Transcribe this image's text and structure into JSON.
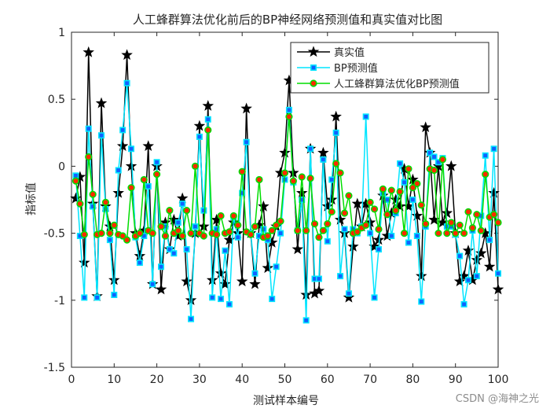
{
  "chart_data": {
    "type": "line",
    "title": "人工蜂群算法优化前后的BP神经网络预测值和真实值对比图",
    "xlabel": "测试样本编号",
    "ylabel": "指标值",
    "xlim": [
      0,
      100
    ],
    "ylim": [
      -1.5,
      1
    ],
    "xticks": [
      0,
      10,
      20,
      30,
      40,
      50,
      60,
      70,
      80,
      90,
      100
    ],
    "yticks": [
      -1.5,
      -1,
      -0.5,
      0,
      0.5,
      1
    ],
    "grid": false,
    "legend_position": "top-right",
    "x": [
      1,
      2,
      3,
      4,
      5,
      6,
      7,
      8,
      9,
      10,
      11,
      12,
      13,
      14,
      15,
      16,
      17,
      18,
      19,
      20,
      21,
      22,
      23,
      24,
      25,
      26,
      27,
      28,
      29,
      30,
      31,
      32,
      33,
      34,
      35,
      36,
      37,
      38,
      39,
      40,
      41,
      42,
      43,
      44,
      45,
      46,
      47,
      48,
      49,
      50,
      51,
      52,
      53,
      54,
      55,
      56,
      57,
      58,
      59,
      60,
      61,
      62,
      63,
      64,
      65,
      66,
      67,
      68,
      69,
      70,
      71,
      72,
      73,
      74,
      75,
      76,
      77,
      78,
      79,
      80,
      81,
      82,
      83,
      84,
      85,
      86,
      87,
      88,
      89,
      90,
      91,
      92,
      93,
      94,
      95,
      96,
      97,
      98,
      99,
      100
    ],
    "series": [
      {
        "name": "真实值",
        "color": "#000000",
        "marker": "star",
        "values": [
          -0.24,
          -0.08,
          -0.72,
          0.85,
          -0.28,
          -0.97,
          0.47,
          -0.3,
          -0.45,
          -0.85,
          -0.2,
          0.15,
          0.83,
          0.0,
          -0.5,
          -0.67,
          -0.48,
          0.15,
          -0.88,
          0.0,
          -0.92,
          -0.42,
          -0.62,
          -0.4,
          -0.52,
          -0.24,
          -0.86,
          -1.0,
          -0.5,
          0.3,
          -0.45,
          0.45,
          -0.85,
          -0.4,
          -0.8,
          -0.88,
          -0.55,
          -0.42,
          -0.5,
          -0.86,
          0.43,
          -0.5,
          -0.88,
          -0.44,
          -0.3,
          -0.76,
          -0.57,
          -0.45,
          -0.05,
          0.1,
          0.64,
          -0.05,
          -0.62,
          -0.2,
          -0.96,
          0.13,
          -0.95,
          -0.93,
          0.1,
          -0.3,
          -0.25,
          0.37,
          -0.4,
          -0.5,
          -0.98,
          -0.6,
          -0.28,
          -0.45,
          -0.28,
          -0.42,
          -0.6,
          -0.55,
          -0.22,
          -0.52,
          -0.35,
          -0.25,
          -0.3,
          -0.02,
          -0.3,
          -0.1,
          -0.37,
          -0.82,
          0.29,
          0.1,
          -0.4,
          0.0,
          -0.42,
          -0.35,
          0.0,
          -0.5,
          -0.86,
          -0.82,
          -0.63,
          -0.85,
          -0.7,
          -0.65,
          -0.5,
          -0.75,
          -0.2,
          -0.92
        ]
      },
      {
        "name": "BP预测值",
        "color": "#00e5ff",
        "marker": "square",
        "values": [
          -0.07,
          -0.52,
          -0.98,
          0.28,
          -0.3,
          -0.98,
          0.23,
          -0.32,
          -0.55,
          -0.96,
          -0.03,
          0.27,
          0.62,
          0.13,
          -0.53,
          -0.72,
          -0.52,
          -0.15,
          -0.88,
          0.03,
          -0.75,
          -0.45,
          -0.62,
          -0.65,
          -0.42,
          -0.28,
          -0.62,
          -1.14,
          -0.45,
          0.22,
          -0.33,
          0.35,
          -0.98,
          -0.47,
          -0.99,
          -0.63,
          -1.03,
          -0.38,
          -0.53,
          -0.2,
          0.18,
          -0.5,
          -0.8,
          -0.52,
          -0.47,
          -0.55,
          -0.99,
          -0.75,
          -0.5,
          -0.1,
          0.42,
          -0.12,
          -0.48,
          -0.25,
          -1.15,
          0.13,
          -0.84,
          -0.84,
          0.05,
          -0.56,
          -0.1,
          0.25,
          -0.82,
          -0.47,
          -0.95,
          -0.47,
          -0.5,
          -0.45,
          0.37,
          -0.5,
          -0.98,
          -0.62,
          -0.2,
          -0.25,
          -0.52,
          -0.35,
          0.02,
          -0.12,
          -0.57,
          -0.25,
          -0.52,
          -1.01,
          -0.45,
          0.1,
          0.07,
          0.03,
          0.06,
          -0.45,
          -0.45,
          -0.51,
          -0.67,
          -1.03,
          -0.85,
          -0.48,
          -0.82,
          -0.37,
          0.08,
          -0.55,
          0.13,
          -0.8
        ]
      },
      {
        "name": "人工蜂群算法优化BP预测值",
        "color": "#00dd00",
        "marker": "circle",
        "values": [
          -0.11,
          -0.28,
          -0.51,
          0.07,
          -0.21,
          -0.51,
          -0.5,
          -0.27,
          -0.5,
          -0.44,
          -0.51,
          -0.52,
          -0.55,
          -0.16,
          -0.52,
          -0.5,
          -0.1,
          -0.48,
          -0.5,
          -0.06,
          -0.45,
          -0.52,
          -0.33,
          -0.5,
          -0.48,
          -0.52,
          -0.33,
          -0.5,
          0.0,
          -0.5,
          -0.52,
          0.27,
          -0.5,
          -0.51,
          -0.37,
          -0.5,
          -0.49,
          -0.37,
          -0.44,
          -0.04,
          -0.49,
          -0.51,
          -0.45,
          -0.1,
          -0.53,
          -0.52,
          -0.48,
          -0.44,
          -0.41,
          -0.05,
          0.37,
          -0.11,
          -0.48,
          -0.08,
          -0.48,
          -0.09,
          -0.43,
          -0.53,
          -0.48,
          -0.43,
          -0.34,
          0.02,
          -0.05,
          -0.35,
          -0.22,
          -0.5,
          -0.49,
          -0.46,
          -0.44,
          -0.27,
          -0.32,
          -0.47,
          -0.17,
          -0.36,
          -0.18,
          -0.33,
          -0.19,
          -0.5,
          -0.02,
          -0.16,
          -0.13,
          -0.29,
          -0.43,
          -0.02,
          -0.03,
          -0.5,
          0.05,
          -0.5,
          -0.42,
          -0.5,
          -0.44,
          -0.5,
          -0.34,
          -0.46,
          -0.36,
          -0.48,
          -0.06,
          -0.38,
          -0.36,
          -0.42
        ]
      }
    ]
  },
  "watermark": "CSDN @海神之光"
}
